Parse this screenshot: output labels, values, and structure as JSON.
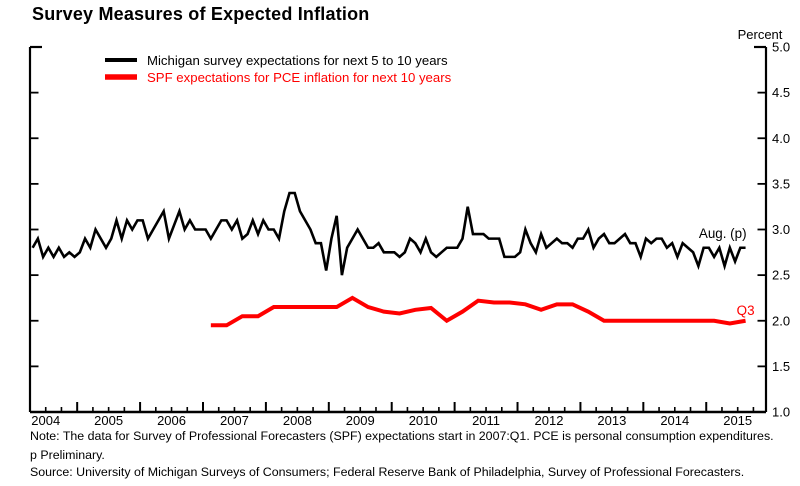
{
  "page": {
    "title": "Survey Measures of Expected Inflation"
  },
  "chart_data": {
    "type": "line",
    "title": "Survey Measures of Expected Inflation",
    "ylabel": "Percent",
    "ylim": [
      1.0,
      5.0
    ],
    "y_ticks": [
      "1.0",
      "1.5",
      "2.0",
      "2.5",
      "3.0",
      "3.5",
      "4.0",
      "4.5",
      "5.0"
    ],
    "xlim": [
      2004.25,
      2015.95
    ],
    "x_ticks": [
      "2004",
      "2005",
      "2006",
      "2007",
      "2008",
      "2009",
      "2010",
      "2011",
      "2012",
      "2013",
      "2014",
      "2015"
    ],
    "grid": false,
    "legend_position": "top-left",
    "series": [
      {
        "name": "Michigan survey expectations for next 5 to 10 years",
        "color": "#000000",
        "frequency": "monthly",
        "start": "2004-04",
        "end": "2015-08",
        "end_annotation": "Aug. (p)",
        "values": [
          2.8,
          2.9,
          2.7,
          2.8,
          2.7,
          2.8,
          2.7,
          2.75,
          2.7,
          2.75,
          2.9,
          2.8,
          3.0,
          2.9,
          2.8,
          2.9,
          3.1,
          2.9,
          3.1,
          3.0,
          3.1,
          3.1,
          2.9,
          3.0,
          3.1,
          3.2,
          2.9,
          3.05,
          3.2,
          3.0,
          3.1,
          3.0,
          3.0,
          3.0,
          2.9,
          3.0,
          3.1,
          3.1,
          3.0,
          3.1,
          2.9,
          2.95,
          3.1,
          2.95,
          3.1,
          3.0,
          3.0,
          2.9,
          3.2,
          3.4,
          3.4,
          3.2,
          3.1,
          3.0,
          2.85,
          2.85,
          2.55,
          2.9,
          3.15,
          2.5,
          2.8,
          2.9,
          3.0,
          2.9,
          2.8,
          2.8,
          2.85,
          2.75,
          2.75,
          2.75,
          2.7,
          2.75,
          2.9,
          2.85,
          2.75,
          2.9,
          2.75,
          2.7,
          2.75,
          2.8,
          2.8,
          2.8,
          2.9,
          3.25,
          2.95,
          2.95,
          2.95,
          2.9,
          2.9,
          2.9,
          2.7,
          2.7,
          2.7,
          2.75,
          3.0,
          2.85,
          2.75,
          2.95,
          2.8,
          2.85,
          2.9,
          2.85,
          2.85,
          2.8,
          2.9,
          2.9,
          3.0,
          2.8,
          2.9,
          2.95,
          2.85,
          2.85,
          2.9,
          2.95,
          2.85,
          2.85,
          2.7,
          2.9,
          2.85,
          2.9,
          2.9,
          2.8,
          2.85,
          2.7,
          2.85,
          2.8,
          2.75,
          2.6,
          2.8,
          2.8,
          2.7,
          2.8,
          2.6,
          2.8,
          2.65,
          2.8,
          2.8
        ]
      },
      {
        "name": "SPF expectations for PCE inflation for next 10 years",
        "color": "#ff0000",
        "frequency": "quarterly",
        "start": "2007-Q1",
        "end": "2015-Q3",
        "end_annotation": "Q3",
        "values": [
          1.95,
          1.95,
          2.05,
          2.05,
          2.15,
          2.15,
          2.15,
          2.15,
          2.15,
          2.25,
          2.15,
          2.1,
          2.08,
          2.12,
          2.14,
          2.0,
          2.1,
          2.22,
          2.2,
          2.2,
          2.18,
          2.12,
          2.18,
          2.18,
          2.1,
          2.0,
          2.0,
          2.0,
          2.0,
          2.0,
          2.0,
          2.0,
          2.0,
          1.97,
          2.0
        ]
      }
    ]
  },
  "footnotes": {
    "note": "Note:  The data for Survey of Professional Forecasters (SPF) expectations start in 2007:Q1.  PCE is personal consumption expenditures.",
    "preliminary": "p Preliminary.",
    "source": "Source:  University of Michigan Surveys of Consumers; Federal Reserve Bank of Philadelphia, Survey of Professional Forecasters."
  }
}
